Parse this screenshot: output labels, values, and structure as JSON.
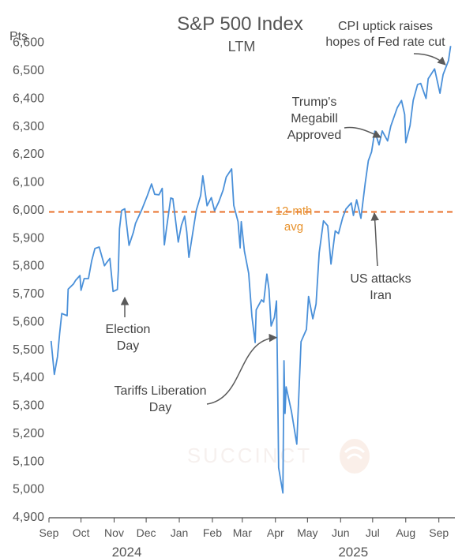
{
  "chart_data": {
    "type": "line",
    "title": "S&P 500 Index",
    "subtitle": "LTM",
    "ylabel": "Pts",
    "ylim": [
      4900,
      6650
    ],
    "yticks": [
      4900,
      5000,
      5100,
      5200,
      5300,
      5400,
      5500,
      5600,
      5700,
      5800,
      5900,
      6000,
      6100,
      6200,
      6300,
      6400,
      6500,
      6600
    ],
    "ytick_labels": [
      "4,900",
      "5,000",
      "5,100",
      "5,200",
      "5,300",
      "5,400",
      "5,500",
      "5,600",
      "5,700",
      "5,800",
      "5,900",
      "6,000",
      "6,100",
      "6,200",
      "6,300",
      "6,400",
      "6,500",
      "6,600"
    ],
    "xlim": [
      "2024-09-01",
      "2025-09-16"
    ],
    "month_ticks": [
      "2024-09-01",
      "2024-10-01",
      "2024-11-01",
      "2024-12-01",
      "2025-01-01",
      "2025-02-01",
      "2025-03-01",
      "2025-04-01",
      "2025-05-01",
      "2025-06-01",
      "2025-07-01",
      "2025-08-01",
      "2025-09-01"
    ],
    "month_labels": [
      "Sep",
      "Oct",
      "Nov",
      "Dec",
      "Jan",
      "Feb",
      "Mar",
      "Apr",
      "May",
      "Jun",
      "Jul",
      "Aug",
      "Sep"
    ],
    "year_labels": [
      {
        "year": "2024",
        "at": "2024-11-01"
      },
      {
        "year": "2025",
        "at": "2025-06-01"
      }
    ],
    "series": [
      {
        "color": "#4a90d9",
        "points": [
          [
            "2024-09-03",
            5528
          ],
          [
            "2024-09-06",
            5408
          ],
          [
            "2024-09-09",
            5471
          ],
          [
            "2024-09-11",
            5554
          ],
          [
            "2024-09-13",
            5626
          ],
          [
            "2024-09-18",
            5618
          ],
          [
            "2024-09-19",
            5713
          ],
          [
            "2024-09-24",
            5732
          ],
          [
            "2024-09-26",
            5745
          ],
          [
            "2024-09-30",
            5762
          ],
          [
            "2024-10-01",
            5709
          ],
          [
            "2024-10-04",
            5751
          ],
          [
            "2024-10-08",
            5751
          ],
          [
            "2024-10-11",
            5815
          ],
          [
            "2024-10-14",
            5859
          ],
          [
            "2024-10-18",
            5864
          ],
          [
            "2024-10-23",
            5797
          ],
          [
            "2024-10-25",
            5808
          ],
          [
            "2024-10-28",
            5823
          ],
          [
            "2024-10-31",
            5705
          ],
          [
            "2024-11-04",
            5712
          ],
          [
            "2024-11-05",
            5782
          ],
          [
            "2024-11-06",
            5929
          ],
          [
            "2024-11-08",
            5995
          ],
          [
            "2024-11-11",
            6001
          ],
          [
            "2024-11-15",
            5870
          ],
          [
            "2024-11-19",
            5917
          ],
          [
            "2024-11-21",
            5949
          ],
          [
            "2024-11-27",
            5999
          ],
          [
            "2024-12-02",
            6047
          ],
          [
            "2024-12-06",
            6090
          ],
          [
            "2024-12-09",
            6053
          ],
          [
            "2024-12-13",
            6051
          ],
          [
            "2024-12-16",
            6074
          ],
          [
            "2024-12-18",
            5872
          ],
          [
            "2024-12-20",
            5930
          ],
          [
            "2024-12-24",
            6040
          ],
          [
            "2024-12-26",
            6037
          ],
          [
            "2024-12-31",
            5882
          ],
          [
            "2025-01-03",
            5942
          ],
          [
            "2025-01-06",
            5975
          ],
          [
            "2025-01-08",
            5918
          ],
          [
            "2025-01-10",
            5827
          ],
          [
            "2025-01-15",
            5950
          ],
          [
            "2025-01-17",
            5997
          ],
          [
            "2025-01-21",
            6049
          ],
          [
            "2025-01-23",
            6119
          ],
          [
            "2025-01-27",
            6012
          ],
          [
            "2025-01-31",
            6041
          ],
          [
            "2025-02-03",
            5994
          ],
          [
            "2025-02-07",
            6026
          ],
          [
            "2025-02-11",
            6068
          ],
          [
            "2025-02-14",
            6115
          ],
          [
            "2025-02-19",
            6144
          ],
          [
            "2025-02-21",
            6013
          ],
          [
            "2025-02-25",
            5955
          ],
          [
            "2025-02-27",
            5861
          ],
          [
            "2025-02-28",
            5955
          ],
          [
            "2025-03-03",
            5849
          ],
          [
            "2025-03-07",
            5770
          ],
          [
            "2025-03-10",
            5615
          ],
          [
            "2025-03-13",
            5522
          ],
          [
            "2025-03-14",
            5639
          ],
          [
            "2025-03-19",
            5675
          ],
          [
            "2025-03-21",
            5667
          ],
          [
            "2025-03-24",
            5767
          ],
          [
            "2025-03-26",
            5712
          ],
          [
            "2025-03-28",
            5581
          ],
          [
            "2025-03-31",
            5612
          ],
          [
            "2025-04-02",
            5671
          ],
          [
            "2025-04-03",
            5397
          ],
          [
            "2025-04-04",
            5074
          ],
          [
            "2025-04-08",
            4983
          ],
          [
            "2025-04-09",
            5457
          ],
          [
            "2025-04-10",
            5268
          ],
          [
            "2025-04-11",
            5363
          ],
          [
            "2025-04-16",
            5276
          ],
          [
            "2025-04-21",
            5158
          ],
          [
            "2025-04-25",
            5525
          ],
          [
            "2025-04-30",
            5569
          ],
          [
            "2025-05-02",
            5687
          ],
          [
            "2025-05-06",
            5607
          ],
          [
            "2025-05-09",
            5660
          ],
          [
            "2025-05-12",
            5844
          ],
          [
            "2025-05-16",
            5958
          ],
          [
            "2025-05-20",
            5940
          ],
          [
            "2025-05-23",
            5803
          ],
          [
            "2025-05-27",
            5922
          ],
          [
            "2025-05-30",
            5912
          ],
          [
            "2025-06-03",
            5970
          ],
          [
            "2025-06-06",
            6000
          ],
          [
            "2025-06-11",
            6022
          ],
          [
            "2025-06-13",
            5977
          ],
          [
            "2025-06-16",
            6033
          ],
          [
            "2025-06-20",
            5967
          ],
          [
            "2025-06-24",
            6092
          ],
          [
            "2025-06-27",
            6173
          ],
          [
            "2025-06-30",
            6205
          ],
          [
            "2025-07-03",
            6279
          ],
          [
            "2025-07-07",
            6230
          ],
          [
            "2025-07-10",
            6280
          ],
          [
            "2025-07-15",
            6244
          ],
          [
            "2025-07-18",
            6297
          ],
          [
            "2025-07-24",
            6363
          ],
          [
            "2025-07-28",
            6389
          ],
          [
            "2025-07-31",
            6339
          ],
          [
            "2025-08-01",
            6238
          ],
          [
            "2025-08-05",
            6299
          ],
          [
            "2025-08-08",
            6389
          ],
          [
            "2025-08-12",
            6446
          ],
          [
            "2025-08-15",
            6450
          ],
          [
            "2025-08-20",
            6396
          ],
          [
            "2025-08-22",
            6467
          ],
          [
            "2025-08-28",
            6502
          ],
          [
            "2025-09-02",
            6415
          ],
          [
            "2025-09-05",
            6482
          ],
          [
            "2025-09-10",
            6532
          ],
          [
            "2025-09-12",
            6584
          ]
        ]
      }
    ],
    "reference_line": {
      "value": 5990,
      "label": [
        "12-mth",
        "avg"
      ],
      "color": "#e8702a",
      "style": "dashed"
    },
    "annotations": [
      {
        "text": [
          "Election",
          "Day"
        ],
        "target": [
          "2024-11-05",
          5720
        ]
      },
      {
        "text": [
          "Tariffs Liberation",
          "Day"
        ],
        "target": [
          "2025-04-02",
          5540
        ]
      },
      {
        "text": [
          "US attacks",
          "Iran"
        ],
        "target": [
          "2025-06-23",
          6010
        ]
      },
      {
        "text": [
          "Trump's",
          "Megabill",
          "Approved"
        ],
        "target": [
          "2025-07-03",
          6300
        ]
      },
      {
        "text": [
          "CPI uptick raises",
          "hopes of Fed rate cut"
        ],
        "target": [
          "2025-09-12",
          6560
        ]
      }
    ],
    "grid": false,
    "watermark": "SUCCINCT"
  }
}
